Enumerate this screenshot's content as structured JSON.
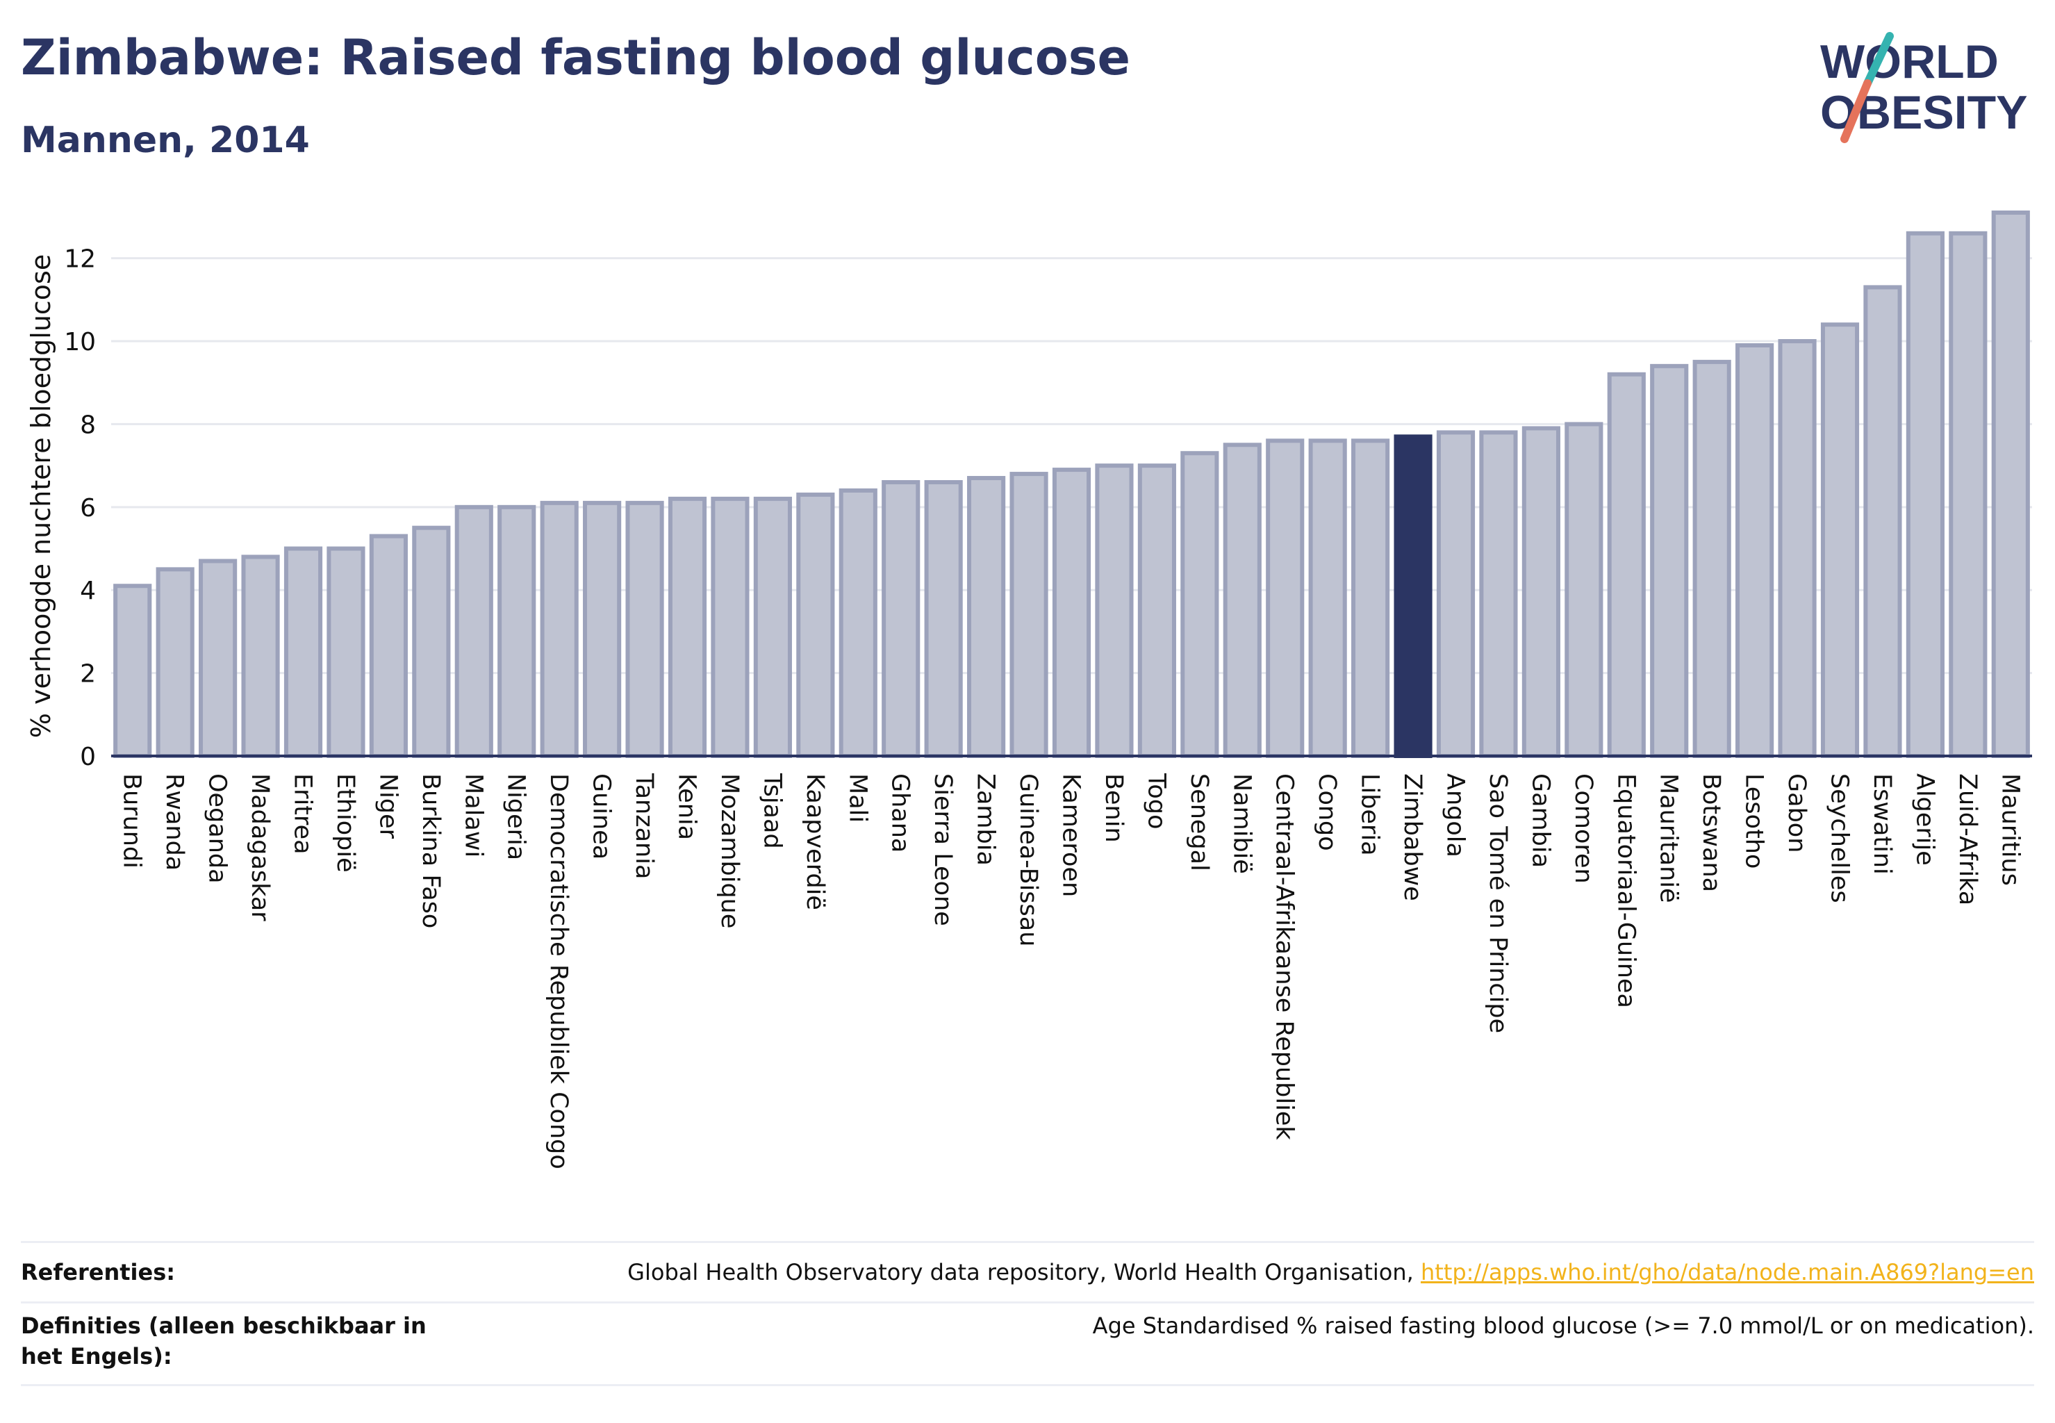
{
  "title": "Zimbabwe: Raised fasting blood glucose",
  "subtitle": "Mannen, 2014",
  "logo": {
    "line1": "WORLD",
    "line2": "OBESITY"
  },
  "colors": {
    "bar": "#bfc3d2",
    "bar_border": "#9ca2bb",
    "highlight": "#2b3563",
    "grid": "#e6e8ee",
    "axis": "#2b3563",
    "link": "#f2b31b"
  },
  "chart_data": {
    "type": "bar",
    "ylabel": "% verhoogde nuchtere bloedglucose",
    "ylim": [
      0,
      13.2
    ],
    "yticks": [
      0,
      2,
      4,
      6,
      8,
      10,
      12
    ],
    "grid": true,
    "highlight": "Zimbabwe",
    "categories": [
      "Burundi",
      "Rwanda",
      "Oeganda",
      "Madagaskar",
      "Eritrea",
      "Ethiopië",
      "Niger",
      "Burkina Faso",
      "Malawi",
      "Nigeria",
      "Democratische Republiek Congo",
      "Guinea",
      "Tanzania",
      "Kenia",
      "Mozambique",
      "Tsjaad",
      "Kaapverdië",
      "Mali",
      "Ghana",
      "Sierra Leone",
      "Zambia",
      "Guinea-Bissau",
      "Kameroen",
      "Benin",
      "Togo",
      "Senegal",
      "Namibië",
      "Centraal-Afrikaanse Republiek",
      "Congo",
      "Liberia",
      "Zimbabwe",
      "Angola",
      "Sao Tomé en Principe",
      "Gambia",
      "Comoren",
      "Equatoriaal-Guinea",
      "Mauritanië",
      "Botswana",
      "Lesotho",
      "Gabon",
      "Seychelles",
      "Eswatini",
      "Algerije",
      "Zuid-Afrika",
      "Mauritius"
    ],
    "values": [
      4.1,
      4.5,
      4.7,
      4.8,
      5.0,
      5.0,
      5.3,
      5.5,
      6.0,
      6.0,
      6.1,
      6.1,
      6.1,
      6.2,
      6.2,
      6.2,
      6.3,
      6.4,
      6.6,
      6.6,
      6.7,
      6.8,
      6.9,
      7.0,
      7.0,
      7.3,
      7.5,
      7.6,
      7.6,
      7.6,
      7.7,
      7.8,
      7.8,
      7.9,
      8.0,
      9.2,
      9.4,
      9.5,
      9.9,
      10.0,
      10.4,
      11.3,
      12.6,
      12.6,
      13.1
    ]
  },
  "footer": {
    "references_label": "Referenties:",
    "references_text": "Global Health Observatory data repository, World Health Organisation, ",
    "references_link": "http://apps.who.int/gho/data/node.main.A869?lang=en",
    "definitions_label": "Definities (alleen beschikbaar in het Engels):",
    "definitions_text": "Age Standardised % raised fasting blood glucose (>= 7.0 mmol/L or on medication)."
  }
}
